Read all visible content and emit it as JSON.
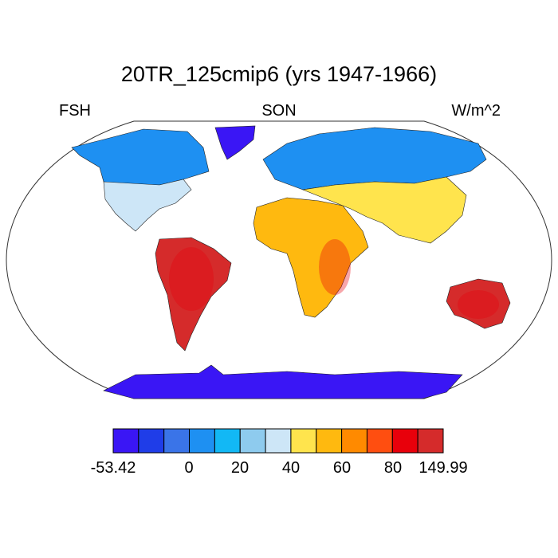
{
  "title": "20TR_125cmip6 (yrs 1947-1966)",
  "left_label": "FSH",
  "center_label": "SON",
  "right_label": "W/m^2",
  "colorbar": {
    "colors": [
      "#3a16f5",
      "#1f3de8",
      "#3a74e8",
      "#1e90f2",
      "#12b8f5",
      "#8ecbee",
      "#cde6f7",
      "#ffe44d",
      "#ffb90f",
      "#ff8a00",
      "#ff4e10",
      "#e8000b",
      "#d52b2b"
    ],
    "tick_labels": [
      "-53.42",
      "0",
      "20",
      "40",
      "60",
      "80",
      "149.99"
    ]
  },
  "regions": [
    {
      "name": "antarctica",
      "color": "#3a16f5"
    },
    {
      "name": "greenland",
      "color": "#3a16f5"
    },
    {
      "name": "north-america-north",
      "color": "#1e90f2"
    },
    {
      "name": "north-america-south",
      "color": "#cde6f7"
    },
    {
      "name": "south-america",
      "color": "#d52b2b"
    },
    {
      "name": "africa",
      "color": "#ffb90f"
    },
    {
      "name": "eurasia-north",
      "color": "#1e90f2"
    },
    {
      "name": "eurasia-south",
      "color": "#ffe44d"
    },
    {
      "name": "australia",
      "color": "#d52b2b"
    }
  ]
}
